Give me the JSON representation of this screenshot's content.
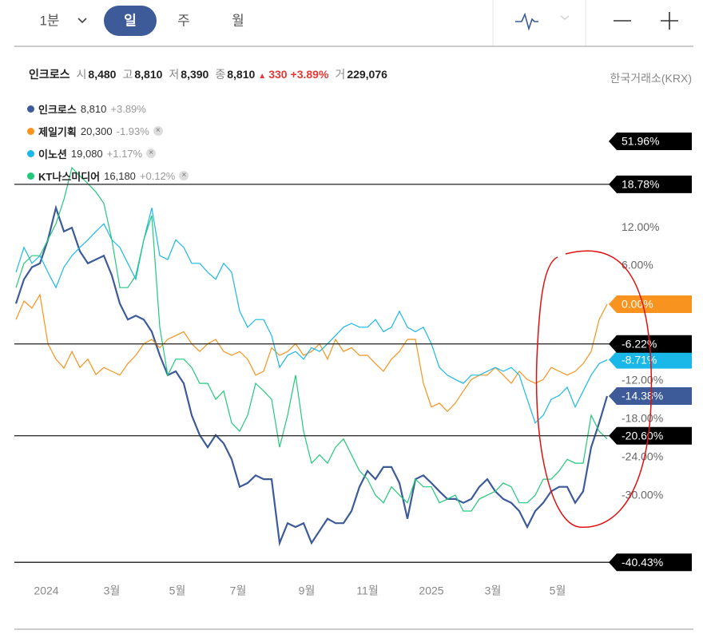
{
  "toolbar": {
    "periods": [
      "1분",
      "일",
      "주",
      "월"
    ]
  },
  "quote": {
    "name": "인크로스",
    "items": [
      {
        "label": "시",
        "value": "8,480"
      },
      {
        "label": "고",
        "value": "8,810"
      },
      {
        "label": "저",
        "value": "8,390"
      },
      {
        "label": "종",
        "value": "8,810"
      }
    ],
    "arrow": "▲",
    "change": "330",
    "change_pct": "+3.89%",
    "volume_label": "거",
    "volume": "229,076",
    "exchange": "한국거래소(KRX)"
  },
  "chart_data": {
    "type": "line",
    "series": [
      {
        "name": "인크로스",
        "price": "8,810",
        "change": "+3.89%",
        "color": "#3d5a99",
        "tag": "-14.38%",
        "values": [
          0.1,
          3.9,
          5.8,
          6.4,
          10.1,
          15.1,
          11.4,
          12,
          8.3,
          6.4,
          7,
          7.6,
          4.5,
          0.1,
          -2.4,
          -1.8,
          -2.4,
          -4.3,
          -8,
          -11.1,
          -10.5,
          -12.4,
          -17.4,
          -20.5,
          -22.4,
          -20.5,
          -21.8,
          -24.3,
          -28.6,
          -28,
          -26.8,
          -27.4,
          -27.4,
          -37.4,
          -34.3,
          -34.9,
          -34.3,
          -37.4,
          -35.5,
          -33.6,
          -34.3,
          -34.3,
          -32.4,
          -28.6,
          -26.1,
          -27.4,
          -25.5,
          -25.5,
          -28,
          -33.6,
          -27.4,
          -26.8,
          -28,
          -29.3,
          -30.5,
          -30.5,
          -31.1,
          -30.5,
          -28.6,
          -27.4,
          -29.3,
          -30.5,
          -31.1,
          -32.4,
          -34.9,
          -32.4,
          -31.1,
          -29.3,
          -28.6,
          -28.6,
          -31.1,
          -29.3,
          -22.4,
          -18.6,
          -14.38
        ]
      },
      {
        "name": "제일기획",
        "price": "20,300",
        "change": "-1.93%",
        "color": "#f7931e",
        "tag": "0.00%",
        "values": [
          -2.4,
          0.5,
          -0.6,
          1.5,
          -6.2,
          -8.6,
          -10,
          -7.4,
          -9.9,
          -8.6,
          -11,
          -9.9,
          -10.5,
          -11.1,
          -9.3,
          -8,
          -6.2,
          -5.5,
          -6.8,
          -5.5,
          -4.9,
          -4.3,
          -6.2,
          -7.4,
          -6.2,
          -5.5,
          -7.4,
          -8,
          -7.4,
          -8.6,
          -11.1,
          -10.5,
          -6.8,
          -8,
          -7.4,
          -6.2,
          -8,
          -7.4,
          -6.2,
          -8.6,
          -5.5,
          -7.4,
          -6.8,
          -8,
          -8,
          -9.3,
          -10.5,
          -8.6,
          -7.4,
          -5.5,
          -5.5,
          -12.4,
          -16.1,
          -15.5,
          -16.8,
          -15.5,
          -13.6,
          -11.8,
          -11.1,
          -11.1,
          -9.9,
          -11.1,
          -12.4,
          -10.5,
          -11.8,
          -12.4,
          -11.8,
          -9.9,
          -10.5,
          -11.1,
          -10.5,
          -9.3,
          -7.4,
          -2.4,
          0
        ]
      },
      {
        "name": "이노션",
        "price": "19,080",
        "change": "+1.17%",
        "color": "#1ab8e8",
        "tag": "-8.71%",
        "values": [
          5,
          8.9,
          6.4,
          7.6,
          5,
          2.6,
          5.8,
          7.6,
          8.9,
          10.1,
          11.4,
          12.6,
          10.1,
          8.9,
          6.4,
          3.9,
          10.1,
          15.1,
          7.6,
          7,
          10.1,
          8.9,
          6.4,
          6.4,
          5,
          3.9,
          6.4,
          5,
          -1.1,
          -3.6,
          -2.4,
          -2.4,
          -4.9,
          -9.9,
          -8,
          -7.4,
          -8.6,
          -6.8,
          -7.4,
          -6.2,
          -4.9,
          -3.6,
          -3,
          -3.6,
          -3.6,
          -2.4,
          -4.3,
          -3.6,
          -1.1,
          -3.6,
          -4.3,
          -3.6,
          -6.2,
          -9.9,
          -11.1,
          -11.8,
          -12.4,
          -11.1,
          -11.1,
          -10.5,
          -9.9,
          -10.5,
          -9.9,
          -11.1,
          -14.9,
          -18.6,
          -17.4,
          -14.9,
          -14.3,
          -13,
          -16.1,
          -13.6,
          -11.1,
          -9.3,
          -8.71
        ]
      },
      {
        "name": "KT나스미디어",
        "price": "16,180",
        "change": "+0.12%",
        "color": "#22c97a",
        "values": [
          2.6,
          6.4,
          7.6,
          7.6,
          10.1,
          12.6,
          16.4,
          21.4,
          20.1,
          18.9,
          17.6,
          15.8,
          10.1,
          2.6,
          2.6,
          4.5,
          10.1,
          13.9,
          -3.6,
          -11.1,
          -8.6,
          -8.6,
          -9.9,
          -12.4,
          -12.4,
          -14.9,
          -13.6,
          -18.6,
          -19.9,
          -17.4,
          -12.4,
          -13.6,
          -14.9,
          -22.4,
          -17.4,
          -11.1,
          -19.9,
          -24.9,
          -23.6,
          -24.9,
          -22.4,
          -21.1,
          -23.6,
          -26.1,
          -27.4,
          -29.9,
          -31.1,
          -28.6,
          -29.9,
          -31.1,
          -27.4,
          -28.6,
          -28.6,
          -31.1,
          -30.5,
          -29.9,
          -32.4,
          -32.4,
          -30.5,
          -29.9,
          -29.3,
          -28,
          -28.6,
          -31.1,
          -31.1,
          -29.9,
          -27.4,
          -27.4,
          -26.1,
          -24.3,
          -24.9,
          -24.9,
          -17.4,
          -19.9,
          -21.1
        ]
      }
    ],
    "xlim": [
      -0.2,
      85
    ],
    "ylim": [
      -42.4,
      39.9
    ],
    "xticks": [
      {
        "value": 3.8,
        "label": "2024"
      },
      {
        "value": 12,
        "label": "3월"
      },
      {
        "value": 20.2,
        "label": "5월"
      },
      {
        "value": 27.8,
        "label": "7월"
      },
      {
        "value": 36.4,
        "label": "9월"
      },
      {
        "value": 44,
        "label": "11월"
      },
      {
        "value": 52,
        "label": "2025"
      },
      {
        "value": 59.7,
        "label": "3월"
      },
      {
        "value": 67.8,
        "label": "5월"
      }
    ],
    "yticks": [
      {
        "value": 12,
        "label": "12.00%"
      },
      {
        "value": 6,
        "label": "6.00%"
      },
      {
        "value": -12,
        "label": "-12.00%"
      },
      {
        "value": -18,
        "label": "-18.00%"
      },
      {
        "value": -24,
        "label": "-24.00%"
      },
      {
        "value": -30,
        "label": "-30.00%"
      }
    ],
    "levels": [
      {
        "value": 51.96,
        "label": "51.96%"
      },
      {
        "value": 18.78,
        "label": "18.78%"
      },
      {
        "value": -6.22,
        "label": "-6.22%"
      },
      {
        "value": -20.6,
        "label": "-20.60%"
      },
      {
        "value": -40.43,
        "label": "-40.43%"
      }
    ]
  }
}
